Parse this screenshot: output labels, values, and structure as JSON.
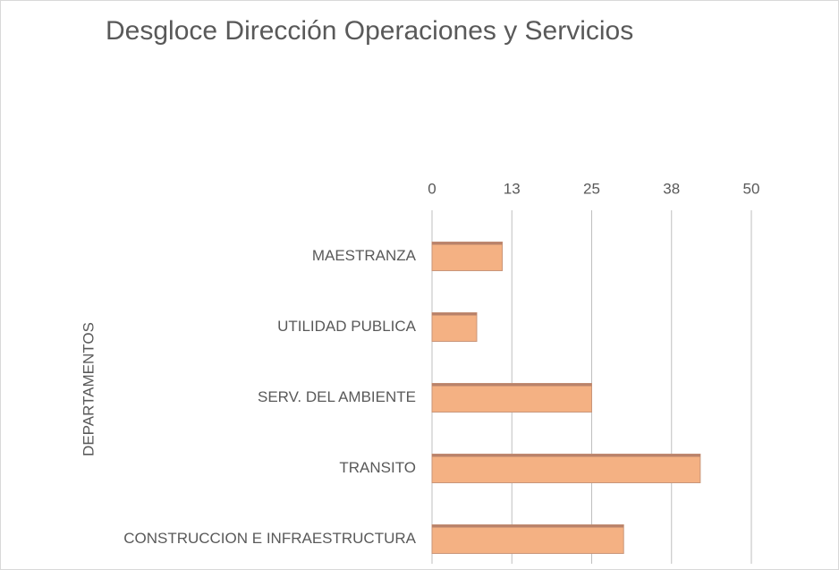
{
  "chart_data": {
    "type": "hbar",
    "title": "Desgloce Dirección Operaciones y Servicios",
    "y_label": "DEPARTAMENTOS",
    "categories": [
      "MAESTRANZA",
      "UTILIDAD PUBLICA",
      "SERV. DEL AMBIENTE",
      "TRANSITO",
      "CONSTRUCCION E INFRAESTRUCTURA"
    ],
    "values": [
      11,
      7,
      25,
      42,
      30
    ],
    "color": "#f4b183",
    "xlim": [
      0,
      50
    ],
    "xticks": [
      0,
      {
        "value": 12.5,
        "label": "13"
      },
      25,
      {
        "value": 37.5,
        "label": "38"
      },
      50
    ],
    "grid": true
  }
}
